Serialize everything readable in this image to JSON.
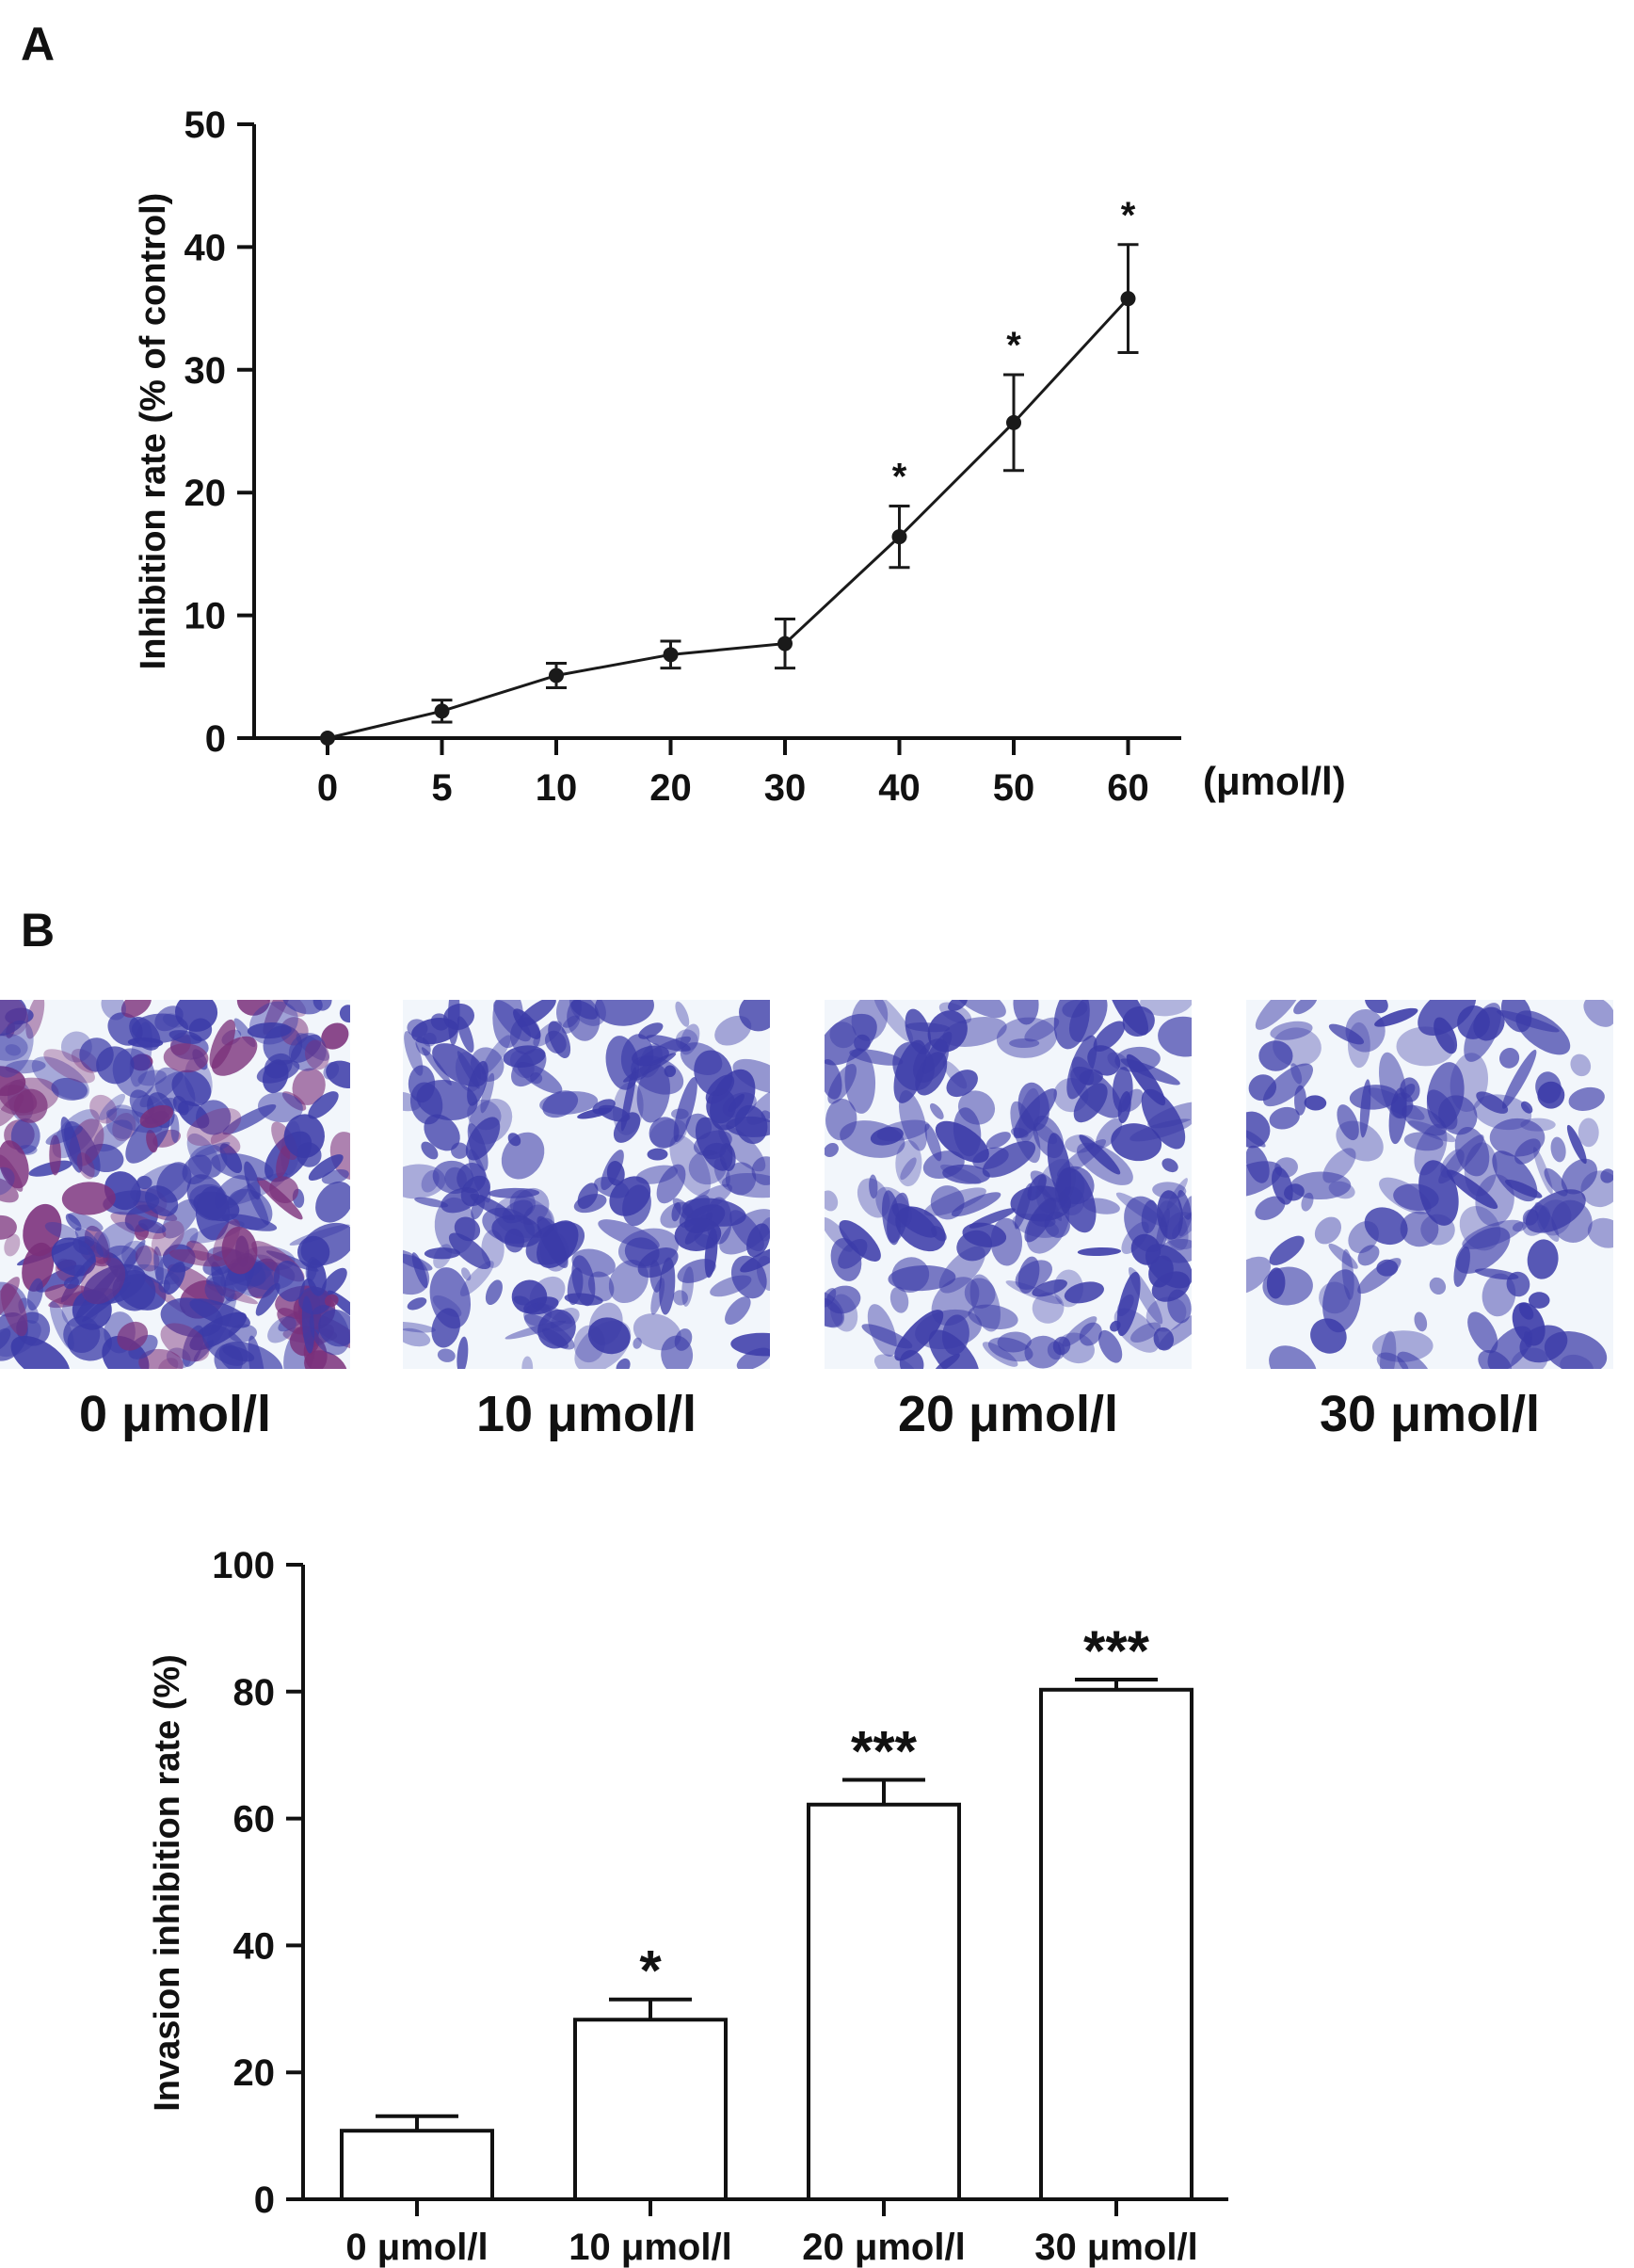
{
  "panels": {
    "a": {
      "letter": "A"
    },
    "b": {
      "letter": "B"
    }
  },
  "chart_data": [
    {
      "type": "line",
      "panel": "A",
      "x": [
        "0",
        "5",
        "10",
        "20",
        "30",
        "40",
        "50",
        "60"
      ],
      "series": [
        {
          "values": [
            0,
            2.2,
            5.1,
            6.8,
            7.7,
            16.4,
            25.7,
            35.8
          ],
          "error": [
            0.2,
            0.9,
            1.0,
            1.1,
            2.0,
            2.5,
            3.9,
            4.4
          ],
          "significance": [
            "",
            "",
            "",
            "",
            "",
            "*",
            "*",
            "*"
          ]
        }
      ],
      "xlabel": "",
      "x_unit": "(μmol/l)",
      "ylabel": "Inhibition rate (% of control)",
      "ylim": [
        0,
        50
      ],
      "yticks": [
        "0",
        "10",
        "20",
        "30",
        "40",
        "50"
      ],
      "grid": false,
      "color": "#1a1a1a"
    },
    {
      "type": "bar",
      "panel": "B",
      "categories": [
        "0 μmol/l",
        "10 μmol/l",
        "20 μmol/l",
        "30 μmol/l"
      ],
      "values": [
        10.8,
        28.3,
        62.2,
        80.3
      ],
      "error": [
        2.3,
        3.2,
        3.9,
        1.6
      ],
      "significance": [
        "",
        "*",
        "***",
        "***"
      ],
      "xlabel": "",
      "ylabel": "Invasion inhibition rate (%)",
      "ylim": [
        0,
        100
      ],
      "yticks": [
        "0",
        "20",
        "40",
        "60",
        "80",
        "100"
      ],
      "grid": false,
      "bar_fill": "#ffffff",
      "bar_stroke": "#111111"
    }
  ],
  "micrographs": {
    "labels": [
      "0 μmol/l",
      "10 μmol/l",
      "20 μmol/l",
      "30 μmol/l"
    ],
    "stain_color": "#3b3ba8",
    "background_color": "#f2f6fb",
    "description_density": [
      0.85,
      0.6,
      0.5,
      0.3
    ]
  }
}
